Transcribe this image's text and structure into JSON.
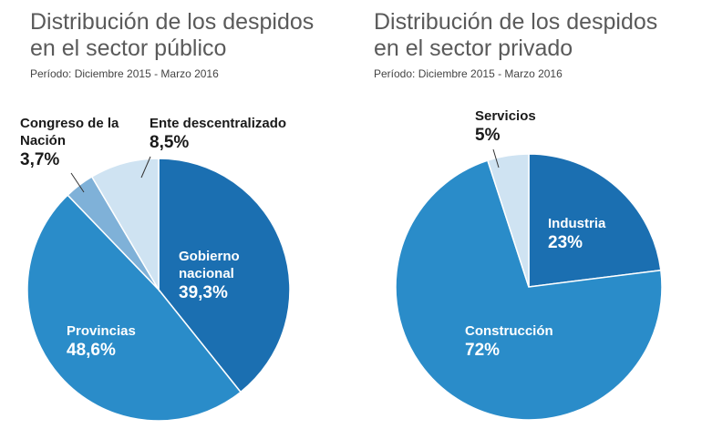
{
  "chart_data": [
    {
      "type": "pie",
      "title": "Distribución de los despidos en el sector público",
      "subtitle": "Período: Diciembre 2015 - Marzo 2016",
      "slices": [
        {
          "label": "Gobierno nacional",
          "value": 39.3,
          "display": "39,3%",
          "color": "#1b6fb1"
        },
        {
          "label": "Provincias",
          "value": 48.6,
          "display": "48,6%",
          "color": "#2a8cc9"
        },
        {
          "label": "Congreso de la Nación",
          "value": 3.7,
          "display": "3,7%",
          "color": "#7fb1d8"
        },
        {
          "label": "Ente descentralizado",
          "value": 8.5,
          "display": "8,5%",
          "color": "#cfe3f2"
        }
      ]
    },
    {
      "type": "pie",
      "title": "Distribución de los despidos en el sector privado",
      "subtitle": "Período: Diciembre 2015 - Marzo 2016",
      "slices": [
        {
          "label": "Industria",
          "value": 23,
          "display": "23%",
          "color": "#1b6fb1"
        },
        {
          "label": "Construcción",
          "value": 72,
          "display": "72%",
          "color": "#2a8cc9"
        },
        {
          "label": "Servicios",
          "value": 5,
          "display": "5%",
          "color": "#cfe3f2"
        }
      ]
    }
  ]
}
